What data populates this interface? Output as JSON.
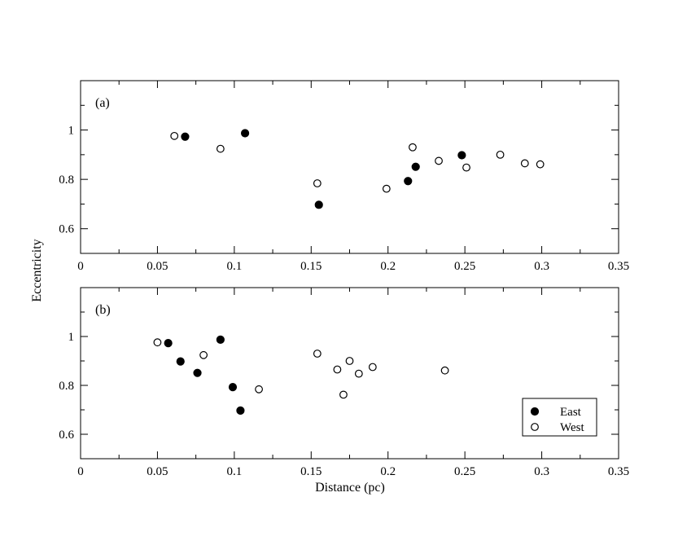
{
  "chart_data": [
    {
      "type": "scatter",
      "panel_label": "(a)",
      "xlim": [
        0,
        0.35
      ],
      "ylim": [
        0.5,
        1.2
      ],
      "x_ticks": [
        "0",
        "0.05",
        "0.1",
        "0.15",
        "0.2",
        "0.25",
        "0.3",
        "0.35"
      ],
      "y_ticks": [
        "0.6",
        "0.8",
        "1"
      ],
      "series": [
        {
          "key": "east",
          "marker": "filled-circle",
          "points": [
            {
              "x": 0.068,
              "y": 0.973
            },
            {
              "x": 0.107,
              "y": 0.987
            },
            {
              "x": 0.155,
              "y": 0.697
            },
            {
              "x": 0.213,
              "y": 0.793
            },
            {
              "x": 0.218,
              "y": 0.851
            },
            {
              "x": 0.248,
              "y": 0.898
            }
          ]
        },
        {
          "key": "west",
          "marker": "open-circle",
          "points": [
            {
              "x": 0.061,
              "y": 0.976
            },
            {
              "x": 0.091,
              "y": 0.924
            },
            {
              "x": 0.154,
              "y": 0.784
            },
            {
              "x": 0.199,
              "y": 0.762
            },
            {
              "x": 0.216,
              "y": 0.93
            },
            {
              "x": 0.233,
              "y": 0.875
            },
            {
              "x": 0.251,
              "y": 0.848
            },
            {
              "x": 0.273,
              "y": 0.9
            },
            {
              "x": 0.289,
              "y": 0.865
            },
            {
              "x": 0.299,
              "y": 0.861
            }
          ]
        }
      ]
    },
    {
      "type": "scatter",
      "panel_label": "(b)",
      "xlim": [
        0,
        0.35
      ],
      "ylim": [
        0.5,
        1.2
      ],
      "x_ticks": [
        "0",
        "0.05",
        "0.1",
        "0.15",
        "0.2",
        "0.25",
        "0.3",
        "0.35"
      ],
      "y_ticks": [
        "0.6",
        "0.8",
        "1"
      ],
      "series": [
        {
          "key": "east",
          "marker": "filled-circle",
          "points": [
            {
              "x": 0.057,
              "y": 0.973
            },
            {
              "x": 0.065,
              "y": 0.898
            },
            {
              "x": 0.076,
              "y": 0.851
            },
            {
              "x": 0.091,
              "y": 0.987
            },
            {
              "x": 0.099,
              "y": 0.793
            },
            {
              "x": 0.104,
              "y": 0.697
            }
          ]
        },
        {
          "key": "west",
          "marker": "open-circle",
          "points": [
            {
              "x": 0.05,
              "y": 0.976
            },
            {
              "x": 0.08,
              "y": 0.924
            },
            {
              "x": 0.116,
              "y": 0.784
            },
            {
              "x": 0.154,
              "y": 0.93
            },
            {
              "x": 0.167,
              "y": 0.865
            },
            {
              "x": 0.171,
              "y": 0.762
            },
            {
              "x": 0.175,
              "y": 0.9
            },
            {
              "x": 0.181,
              "y": 0.848
            },
            {
              "x": 0.19,
              "y": 0.875
            },
            {
              "x": 0.237,
              "y": 0.861
            }
          ]
        }
      ]
    }
  ],
  "labels": {
    "ylabel": "Eccentricity",
    "xlabel": "Distance (pc)"
  },
  "legend": {
    "placement": "bottom-right of panel (b)",
    "items": [
      {
        "key": "east",
        "label": "East",
        "marker": "filled-circle"
      },
      {
        "key": "west",
        "label": "West",
        "marker": "open-circle"
      }
    ]
  },
  "colors": {
    "ink": "#000000",
    "background": "#ffffff"
  }
}
